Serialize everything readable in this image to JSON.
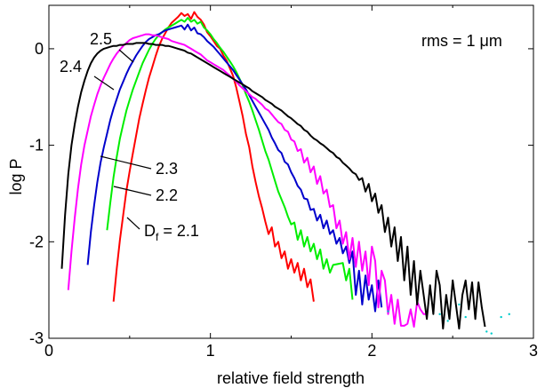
{
  "chart_data": {
    "type": "line",
    "title": "",
    "xlabel": "relative field strength",
    "ylabel": "log P",
    "xlim": [
      0,
      3
    ],
    "ylim": [
      -3,
      0.45
    ],
    "xticks": [
      "0",
      "1",
      "2",
      "3"
    ],
    "yticks": [
      "0",
      "-1",
      "-2",
      "-3"
    ],
    "annotation": "rms = 1 μm",
    "legend": "inline labels with leader lines",
    "grid": false,
    "series": [
      {
        "name": "D_f = 2.1",
        "label": "Df = 2.1",
        "color": "#ff0000",
        "x": [
          0.4,
          0.42,
          0.44,
          0.46,
          0.48,
          0.5,
          0.52,
          0.54,
          0.56,
          0.58,
          0.6,
          0.62,
          0.64,
          0.66,
          0.68,
          0.7,
          0.72,
          0.74,
          0.76,
          0.78,
          0.8,
          0.82,
          0.84,
          0.86,
          0.88,
          0.9,
          0.92,
          0.94,
          0.96,
          0.98,
          1.0,
          1.02,
          1.04,
          1.06,
          1.08,
          1.1,
          1.12,
          1.14,
          1.16,
          1.18,
          1.2,
          1.22,
          1.24,
          1.26,
          1.28,
          1.3,
          1.32,
          1.34,
          1.36,
          1.38,
          1.4,
          1.42,
          1.44,
          1.46,
          1.48,
          1.5,
          1.52,
          1.54,
          1.56,
          1.58,
          1.6,
          1.62,
          1.64
        ],
        "values": [
          -2.62,
          -2.28,
          -1.98,
          -1.72,
          -1.47,
          -1.27,
          -1.08,
          -0.9,
          -0.72,
          -0.57,
          -0.43,
          -0.3,
          -0.19,
          -0.08,
          0.02,
          0.1,
          0.16,
          0.22,
          0.27,
          0.3,
          0.33,
          0.37,
          0.34,
          0.36,
          0.31,
          0.38,
          0.33,
          0.3,
          0.25,
          0.17,
          0.13,
          0.08,
          0.03,
          0.0,
          -0.07,
          -0.12,
          -0.2,
          -0.28,
          -0.4,
          -0.55,
          -0.7,
          -0.88,
          -1.02,
          -1.22,
          -1.38,
          -1.53,
          -1.65,
          -1.79,
          -1.92,
          -1.85,
          -2.05,
          -2.0,
          -2.17,
          -2.1,
          -2.28,
          -2.18,
          -2.32,
          -2.22,
          -2.4,
          -2.28,
          -2.47,
          -2.39,
          -2.62
        ]
      },
      {
        "name": "2.2",
        "label": "2.2",
        "color": "#00ee00",
        "x": [
          0.36,
          0.38,
          0.4,
          0.42,
          0.44,
          0.46,
          0.48,
          0.5,
          0.52,
          0.54,
          0.56,
          0.58,
          0.6,
          0.62,
          0.64,
          0.66,
          0.68,
          0.7,
          0.72,
          0.74,
          0.76,
          0.78,
          0.8,
          0.82,
          0.84,
          0.86,
          0.88,
          0.9,
          0.92,
          0.94,
          0.96,
          0.98,
          1.0,
          1.02,
          1.04,
          1.06,
          1.08,
          1.1,
          1.12,
          1.14,
          1.16,
          1.18,
          1.2,
          1.22,
          1.24,
          1.26,
          1.28,
          1.3,
          1.32,
          1.34,
          1.36,
          1.38,
          1.4,
          1.42,
          1.44,
          1.46,
          1.48,
          1.5,
          1.52,
          1.54,
          1.56,
          1.58,
          1.6,
          1.62,
          1.64,
          1.66,
          1.68,
          1.7,
          1.72,
          1.74,
          1.76,
          1.82,
          1.84,
          1.86,
          1.88
        ],
        "values": [
          -1.88,
          -1.6,
          -1.33,
          -1.12,
          -0.93,
          -0.78,
          -0.64,
          -0.53,
          -0.42,
          -0.33,
          -0.24,
          -0.15,
          -0.08,
          -0.01,
          0.05,
          0.1,
          0.14,
          0.17,
          0.2,
          0.22,
          0.24,
          0.26,
          0.28,
          0.3,
          0.28,
          0.32,
          0.28,
          0.3,
          0.26,
          0.28,
          0.22,
          0.19,
          0.15,
          0.1,
          0.06,
          0.01,
          -0.03,
          -0.08,
          -0.13,
          -0.18,
          -0.24,
          -0.31,
          -0.38,
          -0.47,
          -0.55,
          -0.64,
          -0.74,
          -0.84,
          -0.95,
          -1.06,
          -1.15,
          -1.26,
          -1.37,
          -1.48,
          -1.56,
          -1.64,
          -1.74,
          -1.82,
          -1.8,
          -1.98,
          -1.88,
          -2.05,
          -1.95,
          -2.1,
          -2.02,
          -2.18,
          -2.08,
          -2.28,
          -2.18,
          -2.32,
          -2.24,
          -2.22,
          -2.4,
          -2.28,
          -2.6
        ]
      },
      {
        "name": "2.3",
        "label": "2.3",
        "color": "#0000cc",
        "x": [
          0.24,
          0.26,
          0.28,
          0.3,
          0.32,
          0.34,
          0.36,
          0.38,
          0.4,
          0.42,
          0.44,
          0.46,
          0.48,
          0.5,
          0.52,
          0.54,
          0.56,
          0.58,
          0.6,
          0.62,
          0.64,
          0.66,
          0.68,
          0.7,
          0.72,
          0.74,
          0.76,
          0.78,
          0.8,
          0.82,
          0.84,
          0.86,
          0.88,
          0.9,
          0.92,
          0.94,
          0.96,
          0.98,
          1.0,
          1.02,
          1.04,
          1.06,
          1.08,
          1.1,
          1.12,
          1.14,
          1.16,
          1.18,
          1.2,
          1.22,
          1.24,
          1.26,
          1.28,
          1.3,
          1.32,
          1.34,
          1.36,
          1.38,
          1.4,
          1.42,
          1.44,
          1.46,
          1.48,
          1.5,
          1.52,
          1.54,
          1.56,
          1.58,
          1.6,
          1.62,
          1.64,
          1.66,
          1.68,
          1.7,
          1.72,
          1.74,
          1.76,
          1.78,
          1.8,
          1.82,
          1.84,
          1.86,
          1.88,
          1.9,
          1.92,
          1.94,
          1.96,
          1.98,
          2.0,
          2.02,
          2.04,
          2.06
        ],
        "values": [
          -2.24,
          -1.9,
          -1.62,
          -1.38,
          -1.18,
          -1.02,
          -0.88,
          -0.74,
          -0.62,
          -0.52,
          -0.42,
          -0.34,
          -0.26,
          -0.19,
          -0.13,
          -0.07,
          -0.02,
          0.03,
          0.07,
          0.1,
          0.12,
          0.14,
          0.15,
          0.17,
          0.19,
          0.2,
          0.21,
          0.22,
          0.23,
          0.24,
          0.2,
          0.25,
          0.19,
          0.22,
          0.16,
          0.15,
          0.12,
          0.08,
          0.05,
          0.02,
          -0.02,
          -0.06,
          -0.1,
          -0.14,
          -0.18,
          -0.22,
          -0.27,
          -0.32,
          -0.37,
          -0.42,
          -0.48,
          -0.54,
          -0.6,
          -0.66,
          -0.72,
          -0.78,
          -0.84,
          -0.92,
          -0.98,
          -1.05,
          -1.08,
          -1.17,
          -1.2,
          -1.28,
          -1.34,
          -1.42,
          -1.46,
          -1.55,
          -1.56,
          -1.67,
          -1.66,
          -1.78,
          -1.72,
          -1.86,
          -1.78,
          -1.92,
          -1.88,
          -2.02,
          -1.96,
          -2.12,
          -2.05,
          -2.22,
          -2.1,
          -2.55,
          -2.3,
          -2.65,
          -2.35,
          -2.6,
          -2.45,
          -2.72,
          -2.4,
          -2.68
        ]
      },
      {
        "name": "2.4",
        "label": "2.4",
        "color": "#ff00ff",
        "x": [
          0.12,
          0.14,
          0.16,
          0.18,
          0.2,
          0.22,
          0.24,
          0.26,
          0.28,
          0.3,
          0.32,
          0.34,
          0.36,
          0.38,
          0.4,
          0.42,
          0.44,
          0.46,
          0.48,
          0.5,
          0.52,
          0.54,
          0.56,
          0.58,
          0.6,
          0.62,
          0.64,
          0.66,
          0.68,
          0.7,
          0.72,
          0.74,
          0.76,
          0.78,
          0.8,
          0.82,
          0.84,
          0.86,
          0.88,
          0.9,
          0.92,
          0.94,
          0.96,
          0.98,
          1.0,
          1.02,
          1.04,
          1.06,
          1.08,
          1.1,
          1.12,
          1.14,
          1.16,
          1.18,
          1.2,
          1.22,
          1.24,
          1.26,
          1.28,
          1.3,
          1.32,
          1.34,
          1.36,
          1.38,
          1.4,
          1.42,
          1.44,
          1.46,
          1.48,
          1.5,
          1.52,
          1.54,
          1.56,
          1.58,
          1.6,
          1.62,
          1.64,
          1.66,
          1.68,
          1.7,
          1.72,
          1.74,
          1.76,
          1.78,
          1.8,
          1.82,
          1.84,
          1.86,
          1.88,
          1.9,
          1.92,
          1.94,
          1.96,
          1.98,
          2.0,
          2.02,
          2.04,
          2.06,
          2.08,
          2.1,
          2.12,
          2.14,
          2.16,
          2.18,
          2.2,
          2.22,
          2.24,
          2.26,
          2.28,
          2.3,
          2.32,
          2.34
        ],
        "values": [
          -2.5,
          -2.1,
          -1.75,
          -1.45,
          -1.2,
          -1.0,
          -0.85,
          -0.7,
          -0.58,
          -0.47,
          -0.38,
          -0.3,
          -0.23,
          -0.16,
          -0.1,
          -0.05,
          -0.01,
          0.03,
          0.06,
          0.09,
          0.11,
          0.12,
          0.13,
          0.14,
          0.15,
          0.15,
          0.14,
          0.14,
          0.13,
          0.12,
          0.11,
          0.1,
          0.08,
          0.07,
          0.06,
          0.05,
          0.04,
          0.02,
          0.0,
          -0.02,
          -0.04,
          -0.06,
          -0.09,
          -0.12,
          -0.14,
          -0.16,
          -0.18,
          -0.2,
          -0.22,
          -0.25,
          -0.28,
          -0.31,
          -0.34,
          -0.38,
          -0.41,
          -0.44,
          -0.47,
          -0.5,
          -0.52,
          -0.55,
          -0.58,
          -0.62,
          -0.64,
          -0.68,
          -0.72,
          -0.76,
          -0.78,
          -0.84,
          -0.86,
          -0.94,
          -0.96,
          -1.06,
          -1.04,
          -1.18,
          -1.13,
          -1.28,
          -1.22,
          -1.4,
          -1.32,
          -1.5,
          -1.46,
          -1.64,
          -1.62,
          -1.86,
          -1.78,
          -2.02,
          -1.9,
          -2.18,
          -1.96,
          -2.26,
          -2.0,
          -2.3,
          -2.1,
          -2.45,
          -2.05,
          -2.2,
          -2.68,
          -2.3,
          -2.4,
          -2.75,
          -2.55,
          -2.85,
          -2.6,
          -2.87,
          -2.87,
          -2.85,
          -2.7,
          -2.88,
          -2.62,
          -2.7,
          -2.75,
          -2.75
        ]
      },
      {
        "name": "2.5",
        "label": "2.5",
        "color": "#000000",
        "x": [
          0.08,
          0.1,
          0.12,
          0.14,
          0.16,
          0.18,
          0.2,
          0.22,
          0.24,
          0.26,
          0.28,
          0.3,
          0.32,
          0.34,
          0.36,
          0.38,
          0.4,
          0.42,
          0.44,
          0.46,
          0.48,
          0.5,
          0.52,
          0.54,
          0.56,
          0.58,
          0.6,
          0.62,
          0.64,
          0.66,
          0.68,
          0.7,
          0.72,
          0.74,
          0.76,
          0.78,
          0.8,
          0.82,
          0.84,
          0.86,
          0.88,
          0.9,
          0.92,
          0.94,
          0.96,
          0.98,
          1.0,
          1.02,
          1.04,
          1.06,
          1.08,
          1.1,
          1.12,
          1.14,
          1.16,
          1.18,
          1.2,
          1.22,
          1.24,
          1.26,
          1.28,
          1.3,
          1.32,
          1.34,
          1.36,
          1.38,
          1.4,
          1.42,
          1.44,
          1.46,
          1.48,
          1.5,
          1.52,
          1.54,
          1.56,
          1.58,
          1.6,
          1.62,
          1.64,
          1.66,
          1.68,
          1.7,
          1.72,
          1.74,
          1.76,
          1.78,
          1.8,
          1.82,
          1.84,
          1.86,
          1.88,
          1.9,
          1.92,
          1.94,
          1.96,
          1.98,
          2.0,
          2.02,
          2.04,
          2.06,
          2.08,
          2.1,
          2.12,
          2.14,
          2.16,
          2.18,
          2.2,
          2.22,
          2.24,
          2.26,
          2.28,
          2.3,
          2.32,
          2.34,
          2.36,
          2.38,
          2.4,
          2.42,
          2.44,
          2.46,
          2.48,
          2.5,
          2.52,
          2.54,
          2.56,
          2.58,
          2.6,
          2.62,
          2.64,
          2.66,
          2.68,
          2.7
        ],
        "values": [
          -2.28,
          -1.72,
          -1.3,
          -1.0,
          -0.78,
          -0.6,
          -0.45,
          -0.33,
          -0.23,
          -0.15,
          -0.09,
          -0.05,
          -0.02,
          0.0,
          0.01,
          0.02,
          0.03,
          0.03,
          0.04,
          0.04,
          0.05,
          0.05,
          0.05,
          0.06,
          0.06,
          0.06,
          0.06,
          0.05,
          0.05,
          0.04,
          0.04,
          0.04,
          0.03,
          0.03,
          0.02,
          0.01,
          0.0,
          -0.01,
          -0.02,
          -0.04,
          -0.05,
          -0.07,
          -0.09,
          -0.11,
          -0.13,
          -0.15,
          -0.17,
          -0.19,
          -0.21,
          -0.23,
          -0.25,
          -0.27,
          -0.29,
          -0.31,
          -0.33,
          -0.35,
          -0.37,
          -0.39,
          -0.41,
          -0.44,
          -0.46,
          -0.48,
          -0.5,
          -0.53,
          -0.55,
          -0.57,
          -0.6,
          -0.62,
          -0.64,
          -0.67,
          -0.7,
          -0.72,
          -0.75,
          -0.78,
          -0.8,
          -0.84,
          -0.86,
          -0.9,
          -0.93,
          -0.95,
          -0.98,
          -1.0,
          -1.03,
          -1.06,
          -1.08,
          -1.12,
          -1.14,
          -1.18,
          -1.21,
          -1.24,
          -1.28,
          -1.3,
          -1.36,
          -1.34,
          -1.48,
          -1.4,
          -1.58,
          -1.5,
          -1.7,
          -1.62,
          -1.9,
          -1.75,
          -2.05,
          -1.85,
          -2.2,
          -1.95,
          -2.4,
          -2.05,
          -2.55,
          -2.2,
          -2.65,
          -2.3,
          -2.55,
          -2.8,
          -2.45,
          -2.75,
          -2.3,
          -2.45,
          -2.9,
          -2.55,
          -2.8,
          -2.4,
          -2.65,
          -2.9,
          -2.55,
          -2.4,
          -2.7,
          -2.42,
          -2.8,
          -2.42,
          -2.68,
          -2.88
        ]
      }
    ],
    "stray_points": {
      "color": "#00cccc",
      "x": [
        2.1,
        2.42,
        2.47,
        2.54,
        2.58,
        2.71,
        2.74,
        2.8,
        2.85
      ],
      "values": [
        -2.72,
        -2.75,
        -2.82,
        -2.65,
        -2.78,
        -2.93,
        -2.95,
        -2.78,
        -2.75
      ]
    }
  }
}
